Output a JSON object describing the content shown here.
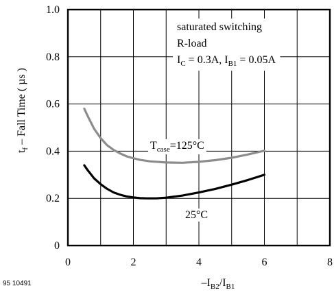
{
  "chart_data": {
    "type": "line",
    "figure_id": "95 10491",
    "xlabel": {
      "prefix": "–I",
      "sub1": "B2",
      "mid": "/I",
      "sub2": "B1"
    },
    "ylabel": {
      "main": "t",
      "sub": "f",
      "rest": " – Fall Time ( µs )"
    },
    "xlim": [
      0,
      8
    ],
    "ylim": [
      0,
      1.0
    ],
    "x_ticks": [
      0,
      2,
      4,
      6,
      8
    ],
    "x_tick_labels": [
      "0",
      "2",
      "4",
      "6",
      "8"
    ],
    "y_ticks": [
      0,
      0.2,
      0.4,
      0.6,
      0.8,
      1.0
    ],
    "y_tick_labels": [
      "0",
      "0.2",
      "0.4",
      "0.6",
      "0.8",
      "1.0"
    ],
    "x_grid": [
      1,
      2,
      3,
      4,
      5,
      6,
      7
    ],
    "y_grid": [
      0.2,
      0.4,
      0.6,
      0.8
    ],
    "grid": true,
    "conditions": {
      "line1": "saturated switching",
      "line2": "R-load",
      "line3": {
        "ic_main": "I",
        "ic_sub": "C",
        "ic_val": " = 0.3A, ",
        "ib_main": "I",
        "ib_sub": "B1",
        "ib_val": " = 0.05A"
      }
    },
    "series": [
      {
        "label": {
          "main": "T",
          "sub": "case",
          "rest": "=125°C"
        },
        "color": "#8c8c8c",
        "x": [
          0.5,
          0.6,
          0.8,
          1.0,
          1.2,
          1.4,
          1.6,
          1.8,
          2.0,
          2.2,
          2.5,
          3.0,
          3.5,
          4.0,
          4.5,
          5.0,
          5.5,
          6.0
        ],
        "y": [
          0.58,
          0.55,
          0.495,
          0.455,
          0.425,
          0.405,
          0.39,
          0.378,
          0.37,
          0.363,
          0.357,
          0.352,
          0.351,
          0.355,
          0.362,
          0.372,
          0.386,
          0.402
        ]
      },
      {
        "label": {
          "main": "25°C",
          "sub": "",
          "rest": ""
        },
        "color": "#000000",
        "x": [
          0.5,
          0.6,
          0.8,
          1.0,
          1.2,
          1.4,
          1.6,
          1.8,
          2.0,
          2.2,
          2.4,
          2.7,
          3.0,
          3.5,
          4.0,
          4.5,
          5.0,
          5.5,
          6.0
        ],
        "y": [
          0.34,
          0.32,
          0.285,
          0.26,
          0.24,
          0.225,
          0.215,
          0.208,
          0.204,
          0.201,
          0.2,
          0.2,
          0.203,
          0.212,
          0.225,
          0.24,
          0.258,
          0.278,
          0.3
        ]
      }
    ]
  }
}
